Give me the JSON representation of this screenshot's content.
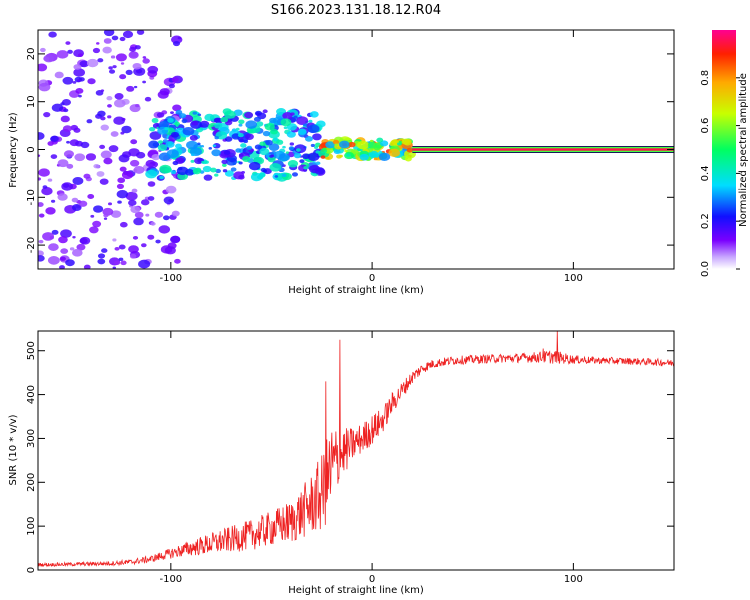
{
  "title": "S166.2023.131.18.12.R04",
  "colors": {
    "snr_line": "#ee2222",
    "frame": "#000000"
  },
  "chart_data": [
    {
      "type": "heatmap",
      "xlabel": "Height of straight line (km)",
      "ylabel": "Frequency (Hz)",
      "xlim": [
        -166,
        150
      ],
      "ylim": [
        -25,
        25
      ],
      "xticks": [
        -100,
        0,
        100
      ],
      "yticks": [
        -20,
        -10,
        0,
        10,
        20
      ],
      "colorbar": {
        "label": "Normalized spectral amplitude",
        "range": [
          0,
          1
        ],
        "ticks": [
          "0.0",
          "0.2",
          "0.4",
          "0.6",
          "0.8"
        ]
      },
      "features": [
        {
          "description": "diffuse scatter",
          "x_range": [
            -166,
            -95
          ],
          "freq_range": [
            -25,
            25
          ],
          "amplitude": 0.15
        },
        {
          "description": "broadband spread",
          "x_range": [
            -110,
            -25
          ],
          "freq_range": [
            -6,
            8
          ],
          "amplitude": 0.35
        },
        {
          "description": "narrowing tone",
          "x_range": [
            -25,
            20
          ],
          "freq_range": [
            -2,
            2
          ],
          "amplitude": 0.7
        },
        {
          "description": "steady tone",
          "x_range": [
            20,
            150
          ],
          "freq_center": 0,
          "amplitude": 0.95
        }
      ]
    },
    {
      "type": "line",
      "xlabel": "Height of straight line (km)",
      "ylabel": "SNR (10 * v/v)",
      "xlim": [
        -166,
        150
      ],
      "ylim": [
        0,
        545
      ],
      "xticks": [
        -100,
        0,
        100
      ],
      "yticks": [
        0,
        100,
        200,
        300,
        400,
        500
      ],
      "series": [
        {
          "x": [
            -166,
            -150,
            -130,
            -120,
            -110,
            -100,
            -90,
            -80,
            -70,
            -60,
            -50,
            -40,
            -30,
            -25,
            -20,
            -15,
            -10,
            -5,
            0,
            5,
            10,
            15,
            20,
            25,
            30,
            40,
            50,
            60,
            70,
            80,
            90,
            100,
            110,
            120,
            130,
            140,
            150
          ],
          "y": [
            12,
            13,
            15,
            18,
            25,
            38,
            50,
            60,
            70,
            80,
            95,
            110,
            150,
            175,
            230,
            265,
            285,
            300,
            320,
            340,
            380,
            410,
            440,
            460,
            470,
            478,
            480,
            482,
            483,
            485,
            486,
            480,
            478,
            477,
            476,
            474,
            472
          ],
          "noise": [
            4,
            4,
            5,
            6,
            8,
            12,
            18,
            25,
            30,
            35,
            40,
            50,
            70,
            90,
            110,
            60,
            40,
            35,
            35,
            30,
            25,
            20,
            15,
            12,
            10,
            10,
            10,
            10,
            10,
            12,
            16,
            10,
            8,
            8,
            8,
            8,
            8
          ],
          "spikes": [
            [
              -23,
              430
            ],
            [
              -16,
              525
            ],
            [
              92,
              545
            ],
            [
              85,
              505
            ]
          ]
        }
      ]
    }
  ]
}
